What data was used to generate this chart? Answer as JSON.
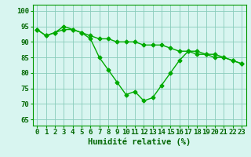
{
  "x": [
    0,
    1,
    2,
    3,
    4,
    5,
    6,
    7,
    8,
    9,
    10,
    11,
    12,
    13,
    14,
    15,
    16,
    17,
    18,
    19,
    20,
    21,
    22,
    23
  ],
  "line1": [
    94,
    92,
    93,
    94,
    94,
    93,
    92,
    91,
    91,
    90,
    90,
    90,
    89,
    89,
    89,
    88,
    87,
    87,
    86,
    86,
    85,
    85,
    84,
    83
  ],
  "line2": [
    94,
    92,
    93,
    95,
    94,
    93,
    91,
    85,
    81,
    77,
    73,
    74,
    71,
    72,
    76,
    80,
    84,
    87,
    87,
    86,
    86,
    85,
    84,
    83
  ],
  "line_color": "#00aa00",
  "bg_color": "#d8f5f0",
  "grid_color": "#88ccbb",
  "xlabel": "Humidité relative (%)",
  "ylabel_ticks": [
    65,
    70,
    75,
    80,
    85,
    90,
    95,
    100
  ],
  "ylim": [
    63,
    102
  ],
  "xlim": [
    -0.5,
    23.5
  ],
  "xlabel_fontsize": 7.5,
  "tick_fontsize": 6.5,
  "line_width": 1.0,
  "marker_size": 2.5
}
